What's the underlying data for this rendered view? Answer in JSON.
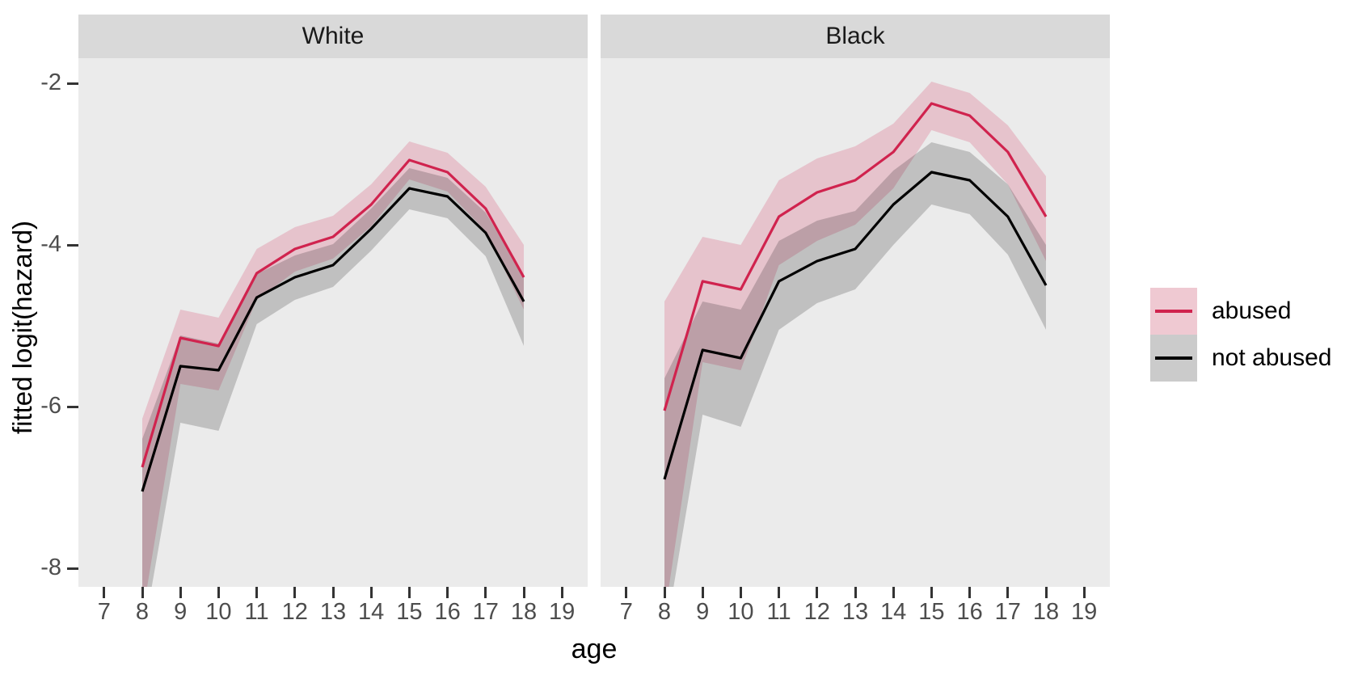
{
  "chart_data": {
    "type": "line",
    "title": "",
    "xlabel": "age",
    "ylabel": "fitted logit(hazard)",
    "x_ticks": [
      7,
      8,
      9,
      10,
      11,
      12,
      13,
      14,
      15,
      16,
      17,
      18,
      19
    ],
    "y_ticks": [
      -2,
      -4,
      -6,
      -8
    ],
    "ylim": [
      -8.25,
      -1.7
    ],
    "xlim": [
      6.4,
      19.6
    ],
    "grid": "off",
    "legend_position": "right",
    "ages": [
      8,
      9,
      10,
      11,
      12,
      13,
      14,
      15,
      16,
      17,
      18
    ],
    "facets": [
      {
        "label": "White",
        "series": [
          {
            "name": "abused",
            "line": [
              -6.75,
              -5.15,
              -5.25,
              -4.35,
              -4.05,
              -3.9,
              -3.5,
              -2.95,
              -3.1,
              -3.55,
              -4.4
            ],
            "upper": [
              -6.15,
              -4.8,
              -4.9,
              -4.05,
              -3.78,
              -3.64,
              -3.25,
              -2.72,
              -2.86,
              -3.28,
              -4.0
            ],
            "lower": [
              -8.6,
              -5.72,
              -5.8,
              -4.68,
              -4.33,
              -4.17,
              -3.77,
              -3.19,
              -3.34,
              -3.83,
              -4.8
            ]
          },
          {
            "name": "not abused",
            "line": [
              -7.05,
              -5.5,
              -5.55,
              -4.65,
              -4.4,
              -4.25,
              -3.8,
              -3.3,
              -3.4,
              -3.85,
              -4.7
            ],
            "upper": [
              -6.4,
              -5.12,
              -5.22,
              -4.36,
              -4.13,
              -3.99,
              -3.55,
              -3.05,
              -3.17,
              -3.6,
              -4.38
            ],
            "lower": [
              -8.9,
              -6.2,
              -6.3,
              -4.98,
              -4.68,
              -4.52,
              -4.07,
              -3.56,
              -3.67,
              -4.14,
              -5.25
            ]
          }
        ]
      },
      {
        "label": "Black",
        "series": [
          {
            "name": "abused",
            "line": [
              -6.05,
              -4.45,
              -4.55,
              -3.65,
              -3.35,
              -3.2,
              -2.85,
              -2.25,
              -2.4,
              -2.85,
              -3.65
            ],
            "upper": [
              -4.7,
              -3.9,
              -4.0,
              -3.2,
              -2.93,
              -2.78,
              -2.5,
              -1.98,
              -2.12,
              -2.52,
              -3.15
            ],
            "lower": [
              -8.6,
              -5.45,
              -5.55,
              -4.25,
              -3.95,
              -3.75,
              -3.3,
              -2.58,
              -2.73,
              -3.25,
              -4.2
            ]
          },
          {
            "name": "not abused",
            "line": [
              -6.9,
              -5.3,
              -5.4,
              -4.45,
              -4.2,
              -4.05,
              -3.5,
              -3.1,
              -3.2,
              -3.65,
              -4.5
            ],
            "upper": [
              -5.65,
              -4.7,
              -4.8,
              -3.95,
              -3.7,
              -3.58,
              -3.08,
              -2.73,
              -2.85,
              -3.25,
              -4.0
            ],
            "lower": [
              -8.9,
              -6.1,
              -6.25,
              -5.05,
              -4.72,
              -4.55,
              -4.0,
              -3.5,
              -3.62,
              -4.12,
              -5.05
            ]
          }
        ]
      }
    ],
    "legend": [
      {
        "label": "abused",
        "line_color": "#D0234E",
        "swatch_color": "#EFC9D2"
      },
      {
        "label": "not abused",
        "line_color": "#000000",
        "swatch_color": "#CBCBCB"
      }
    ],
    "colors": {
      "abused_line": "#D0234E",
      "not_abused_line": "#000000",
      "abused_ribbon": "rgba(208,35,78,0.20)",
      "not_abused_ribbon": "rgba(0,0,0,0.18)",
      "panel_bg": "#EBEBEB",
      "strip_bg": "#D9D9D9",
      "tick_color": "#333333",
      "tick_label_color": "#4D4D4D"
    }
  }
}
